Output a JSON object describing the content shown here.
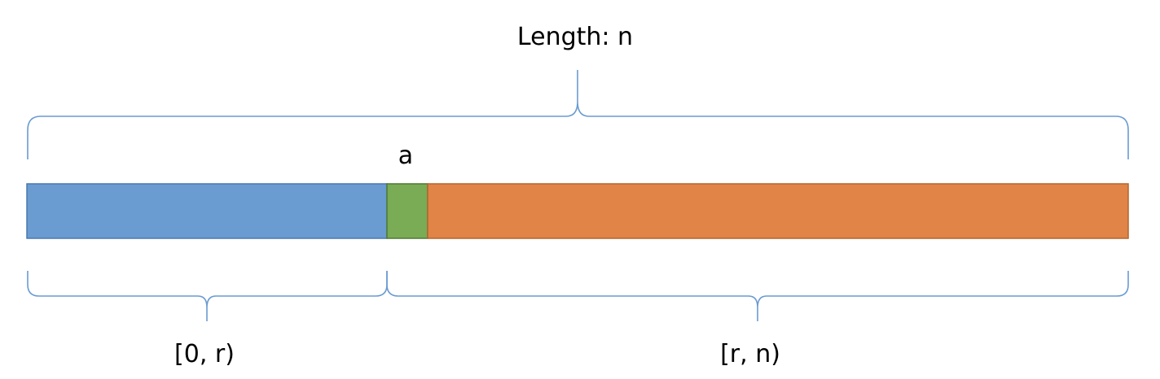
{
  "labels": {
    "length": "Length: n",
    "element": "a",
    "left_range": "[0, r)",
    "right_range": "[r, n)"
  },
  "colors": {
    "left_segment": "#6a9bd1",
    "left_segment_border": "#4a78ad",
    "pivot_segment": "#7aab55",
    "pivot_segment_border": "#4f7a32",
    "right_segment": "#e08547",
    "right_segment_border": "#b4652e",
    "brace": "#6a9bd1"
  }
}
